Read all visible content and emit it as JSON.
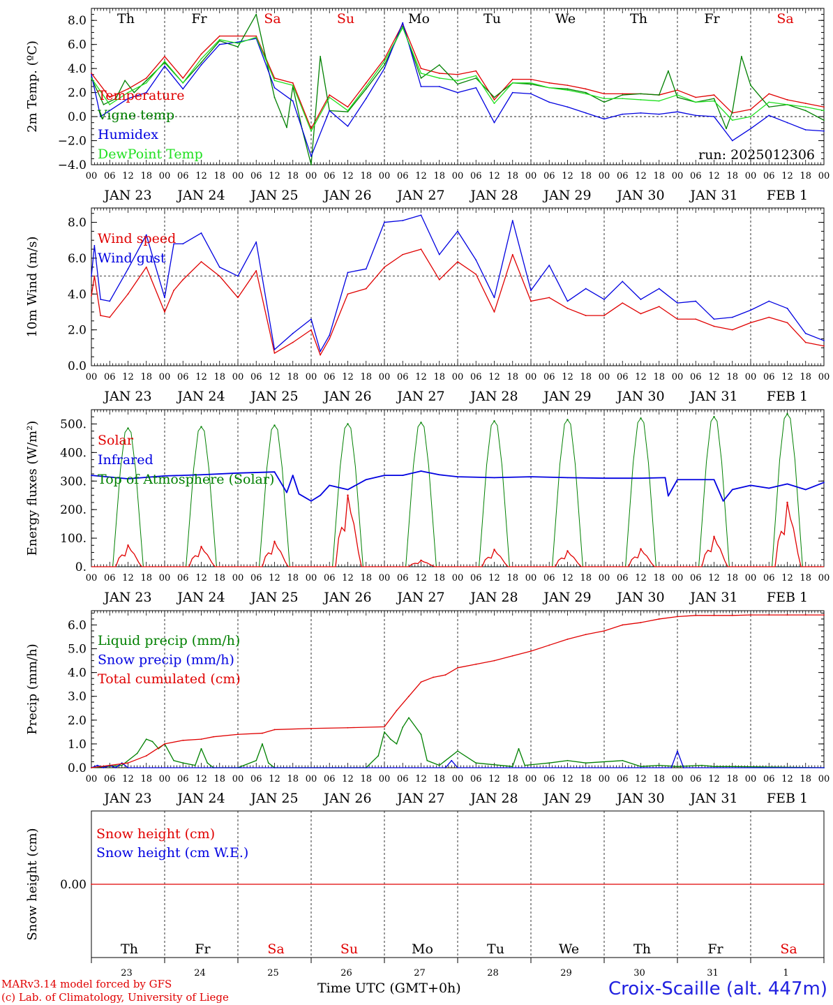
{
  "weekday_labels": [
    {
      "label": "Th",
      "color": "#000000"
    },
    {
      "label": "Fr",
      "color": "#000000"
    },
    {
      "label": "Sa",
      "color": "#e00000"
    },
    {
      "label": "Su",
      "color": "#e00000"
    },
    {
      "label": "Mo",
      "color": "#000000"
    },
    {
      "label": "Tu",
      "color": "#000000"
    },
    {
      "label": "We",
      "color": "#000000"
    },
    {
      "label": "Th",
      "color": "#000000"
    },
    {
      "label": "Fr",
      "color": "#000000"
    },
    {
      "label": "Sa",
      "color": "#e00000"
    }
  ],
  "date_labels": [
    "JAN 23",
    "JAN 24",
    "JAN 25",
    "JAN 26",
    "JAN 27",
    "JAN 28",
    "JAN 29",
    "JAN 30",
    "JAN 31",
    "FEB  1"
  ],
  "hour_labels": [
    "00",
    "06",
    "12",
    "18"
  ],
  "day_numbers": [
    "23",
    "24",
    "25",
    "26",
    "27",
    "28",
    "29",
    "30",
    "31",
    "1"
  ],
  "run_label": "run: 2025012306",
  "footer": {
    "credit_line1": "MARv3.14 model forced by GFS",
    "credit_line2": "(c) Lab. of Climatology, University of Liege",
    "x_title": "Time UTC (GMT+0h)",
    "station": "Croix-Scaille (alt. 447m)"
  },
  "colors": {
    "red": "#e00000",
    "green": "#008000",
    "blue": "#0000e0",
    "lightgreen": "#20e020",
    "axis": "#000000"
  },
  "chart_data": [
    {
      "type": "line",
      "ylabel": "2m Temp. (ºC)",
      "ylim": [
        -4,
        9
      ],
      "ytick_values": [
        -4,
        -2,
        0,
        2,
        4,
        6,
        8
      ],
      "ytick_labels": [
        "−4.0",
        "−2.0",
        "0.0",
        "2.0",
        "4.0",
        "6.0",
        "8.0"
      ],
      "reference_line": 0,
      "x_unit": "hours since JAN 23 00 UTC",
      "series": [
        {
          "name": "Temperature",
          "color": "#e00000",
          "x": [
            0,
            6,
            12,
            18,
            24,
            30,
            36,
            42,
            48,
            54,
            60,
            66,
            72,
            78,
            84,
            90,
            96,
            102,
            108,
            114,
            120,
            126,
            132,
            138,
            144,
            150,
            156,
            162,
            168,
            174,
            180,
            186,
            192,
            198,
            204,
            210,
            216,
            222,
            228,
            234,
            240
          ],
          "values": [
            3.6,
            1.6,
            2.3,
            3.2,
            5,
            3.2,
            5.2,
            6.7,
            6.7,
            6.7,
            3.2,
            2.8,
            -1,
            1.8,
            0.8,
            2.8,
            4.8,
            7.7,
            4,
            3.6,
            3.5,
            3.8,
            1.4,
            3.1,
            3.1,
            2.8,
            2.6,
            2.3,
            1.9,
            1.9,
            1.9,
            1.8,
            2.2,
            1.6,
            1.8,
            0.3,
            0.6,
            1.9,
            1.4,
            1.1,
            0.8
          ]
        },
        {
          "name": "Vigne temp",
          "color": "#008000",
          "x": [
            0,
            4,
            8,
            11,
            14,
            18,
            24,
            30,
            36,
            42,
            48,
            54,
            60,
            64,
            66,
            69,
            72,
            75,
            78,
            84,
            90,
            96,
            102,
            108,
            114,
            120,
            126,
            132,
            138,
            144,
            150,
            156,
            162,
            168,
            174,
            180,
            186,
            189,
            192,
            198,
            204,
            208,
            210,
            213,
            216,
            222,
            228,
            234,
            240
          ],
          "values": [
            3.2,
            1,
            1.5,
            3,
            2,
            3,
            4.5,
            2.8,
            4.5,
            6.3,
            5.8,
            8.5,
            1.6,
            -0.9,
            2.5,
            -1,
            -4,
            5,
            0.5,
            0.4,
            2.3,
            4.3,
            7.5,
            3.2,
            4.3,
            2.7,
            3.2,
            1.6,
            2.8,
            2.7,
            2.4,
            2.3,
            2,
            1.2,
            1.8,
            1.9,
            1.8,
            3.8,
            1.6,
            1.2,
            1.5,
            -1,
            0.4,
            5,
            2.6,
            0.8,
            1.0,
            0.5,
            -0.3
          ]
        },
        {
          "name": "Humidex",
          "color": "#0000e0",
          "x": [
            0,
            3,
            6,
            12,
            18,
            24,
            30,
            36,
            42,
            48,
            54,
            60,
            66,
            72,
            78,
            84,
            90,
            96,
            102,
            108,
            114,
            120,
            126,
            132,
            138,
            144,
            150,
            156,
            162,
            168,
            174,
            180,
            186,
            192,
            198,
            204,
            210,
            216,
            222,
            228,
            234,
            240
          ],
          "values": [
            3.5,
            0,
            0.5,
            1.5,
            2,
            4.2,
            2.3,
            4.3,
            6,
            6.2,
            6.5,
            2.4,
            1.3,
            -3.3,
            0.5,
            -0.8,
            1.5,
            4,
            7.8,
            2.5,
            2.5,
            2,
            2.4,
            -0.5,
            2,
            1.9,
            1.2,
            0.8,
            0.3,
            -0.2,
            0.2,
            0.3,
            0.2,
            0.4,
            0.1,
            0,
            -2,
            -1,
            0.1,
            -0.5,
            -1.1,
            -1.2
          ]
        },
        {
          "name": "DewPoint Temp",
          "color": "#20e020",
          "x": [
            0,
            6,
            12,
            18,
            24,
            30,
            36,
            42,
            48,
            54,
            60,
            66,
            72,
            78,
            84,
            90,
            96,
            102,
            108,
            114,
            120,
            126,
            132,
            138,
            144,
            150,
            156,
            162,
            168,
            174,
            180,
            186,
            192,
            198,
            204,
            210,
            216,
            222,
            228,
            234,
            240
          ],
          "values": [
            3.2,
            1,
            2,
            2.8,
            4.6,
            2.8,
            4.8,
            6.4,
            6.1,
            6.6,
            3,
            2.6,
            -1.2,
            1.6,
            0.5,
            2.5,
            4.6,
            7.4,
            3.6,
            3.2,
            3,
            3.4,
            1.1,
            2.8,
            2.8,
            2.4,
            2.2,
            1.9,
            1.5,
            1.5,
            1.4,
            1.3,
            1.8,
            1.2,
            1.3,
            -0.3,
            0,
            1.2,
            1,
            0.8,
            0.5
          ]
        }
      ],
      "legend": [
        "Temperature",
        "Vigne temp",
        "Humidex",
        "DewPoint Temp"
      ]
    },
    {
      "type": "line",
      "ylabel": "10m Wind (m/s)",
      "ylim": [
        0,
        8.8
      ],
      "ytick_values": [
        0,
        2,
        4,
        6,
        8
      ],
      "ytick_labels": [
        "0.0",
        "2.0",
        "4.0",
        "6.0",
        "8.0"
      ],
      "reference_line": 5,
      "x_unit": "hours since JAN 23 00 UTC",
      "series": [
        {
          "name": "Wind speed",
          "color": "#e00000",
          "x": [
            0,
            1,
            3,
            6,
            12,
            18,
            24,
            27,
            30,
            36,
            42,
            48,
            54,
            60,
            66,
            72,
            75,
            78,
            84,
            90,
            96,
            102,
            108,
            114,
            120,
            126,
            132,
            138,
            144,
            150,
            156,
            162,
            168,
            174,
            180,
            186,
            192,
            198,
            204,
            210,
            216,
            222,
            228,
            234,
            240
          ],
          "values": [
            3.9,
            5,
            2.8,
            2.7,
            4,
            5.5,
            3,
            4.2,
            4.8,
            5.8,
            5,
            3.8,
            5.3,
            0.7,
            1.3,
            2,
            0.6,
            1.5,
            4,
            4.3,
            5.5,
            6.2,
            6.5,
            4.8,
            5.8,
            5.1,
            3,
            6.2,
            3.6,
            3.8,
            3.2,
            2.8,
            2.8,
            3.5,
            2.9,
            3.3,
            2.6,
            2.6,
            2.2,
            2,
            2.4,
            2.7,
            2.4,
            1.3,
            1.1
          ]
        },
        {
          "name": "Wind gust",
          "color": "#0000e0",
          "x": [
            0,
            1,
            3,
            6,
            12,
            18,
            24,
            27,
            30,
            36,
            42,
            48,
            54,
            60,
            66,
            72,
            75,
            78,
            84,
            90,
            96,
            102,
            108,
            114,
            120,
            126,
            132,
            138,
            144,
            150,
            156,
            162,
            168,
            174,
            180,
            186,
            192,
            198,
            204,
            210,
            216,
            222,
            228,
            234,
            240
          ],
          "values": [
            5,
            6.7,
            3.7,
            3.6,
            5.4,
            7.3,
            3.8,
            6.8,
            6.8,
            7.4,
            5.5,
            5,
            6.9,
            0.9,
            1.8,
            2.6,
            0.8,
            1.7,
            5.2,
            5.4,
            8,
            8.1,
            8.4,
            6.2,
            7.5,
            5.9,
            3.8,
            8.1,
            4.2,
            5.6,
            3.6,
            4.3,
            3.7,
            4.7,
            3.7,
            4.3,
            3.5,
            3.6,
            2.6,
            2.7,
            3.1,
            3.6,
            3.2,
            1.8,
            1.4
          ]
        }
      ],
      "legend": [
        "Wind speed",
        "Wind gust"
      ]
    },
    {
      "type": "line",
      "ylabel": "Energy fluxes (W/m²)",
      "ylim": [
        0,
        550
      ],
      "ytick_values": [
        0,
        100,
        200,
        300,
        400,
        500
      ],
      "ytick_labels": [
        "0.",
        "100.",
        "200.",
        "300.",
        "400.",
        "500."
      ],
      "x_unit": "hours since JAN 23 00 UTC",
      "toa_peaks": [
        485,
        490,
        495,
        500,
        505,
        510,
        515,
        520,
        525,
        535
      ],
      "solar_peaks": [
        75,
        70,
        88,
        250,
        22,
        60,
        55,
        62,
        105,
        225
      ],
      "series": [
        {
          "name": "Infrared",
          "color": "#0000e0",
          "x": [
            0,
            12,
            24,
            36,
            48,
            60,
            64,
            66,
            68,
            72,
            75,
            78,
            84,
            90,
            96,
            102,
            108,
            114,
            120,
            132,
            144,
            156,
            168,
            180,
            188,
            189,
            192,
            204,
            207,
            210,
            216,
            222,
            228,
            234,
            240
          ],
          "values": [
            320,
            308,
            318,
            322,
            328,
            332,
            260,
            320,
            255,
            230,
            250,
            285,
            270,
            305,
            320,
            320,
            335,
            322,
            315,
            312,
            315,
            312,
            310,
            310,
            312,
            248,
            305,
            305,
            230,
            270,
            285,
            275,
            290,
            270,
            295
          ]
        }
      ],
      "legend": [
        "Solar",
        "Infrared",
        "Top of Atmosphere (Solar)"
      ]
    },
    {
      "type": "line",
      "ylabel": "Precip (mm/h)",
      "ylim": [
        0,
        6.6
      ],
      "ytick_values": [
        0,
        1,
        2,
        3,
        4,
        5,
        6
      ],
      "ytick_labels": [
        "0.0",
        "1.0",
        "2.0",
        "3.0",
        "4.0",
        "5.0",
        "6.0"
      ],
      "x_unit": "hours since JAN 23 00 UTC",
      "series": [
        {
          "name": "Liquid precip (mm/h)",
          "color": "#008000",
          "x": [
            0,
            10,
            15,
            18,
            20,
            22,
            24,
            27,
            30,
            34,
            36,
            38,
            40,
            48,
            54,
            56,
            58,
            60,
            90,
            94,
            96,
            98,
            100,
            102,
            104,
            108,
            110,
            114,
            120,
            126,
            138,
            140,
            142,
            150,
            156,
            162,
            174,
            180,
            186,
            192,
            200,
            204,
            210,
            240
          ],
          "values": [
            0,
            0.1,
            0.6,
            1.2,
            1.1,
            0.8,
            1.0,
            0.3,
            0.2,
            0.1,
            0.8,
            0.2,
            0,
            0,
            0.3,
            1.0,
            0.2,
            0,
            0,
            0.5,
            1.5,
            1.2,
            1.0,
            1.7,
            2.1,
            1.4,
            0.3,
            0.1,
            0.7,
            0.2,
            0.05,
            0.8,
            0.1,
            0.2,
            0.3,
            0.2,
            0.3,
            0.05,
            0.1,
            0.05,
            0.1,
            0.05,
            0.05,
            0
          ]
        },
        {
          "name": "Snow precip (mm/h)",
          "color": "#0000e0",
          "x": [
            0,
            2,
            4,
            6,
            8,
            10,
            12,
            116,
            118,
            120,
            160,
            176,
            180,
            190,
            192,
            194,
            240
          ],
          "values": [
            0,
            0.1,
            0,
            0.1,
            0,
            0.2,
            0,
            0,
            0.3,
            0,
            0,
            0,
            0,
            0,
            0.7,
            0,
            0
          ]
        },
        {
          "name": "Total cumulated (cm)",
          "color": "#e00000",
          "x": [
            0,
            6,
            12,
            18,
            24,
            30,
            36,
            40,
            48,
            56,
            60,
            72,
            84,
            96,
            100,
            104,
            108,
            112,
            116,
            120,
            126,
            132,
            138,
            144,
            150,
            156,
            162,
            168,
            174,
            180,
            186,
            192,
            198,
            204,
            210,
            216,
            222,
            228,
            234,
            240
          ],
          "values": [
            0,
            0.1,
            0.2,
            0.5,
            1.0,
            1.15,
            1.2,
            1.3,
            1.4,
            1.45,
            1.6,
            1.65,
            1.68,
            1.72,
            2.4,
            3.0,
            3.6,
            3.8,
            3.9,
            4.2,
            4.35,
            4.5,
            4.7,
            4.9,
            5.15,
            5.4,
            5.6,
            5.75,
            6.0,
            6.1,
            6.25,
            6.35,
            6.4,
            6.4,
            6.4,
            6.42,
            6.42,
            6.42,
            6.42,
            6.42
          ]
        }
      ],
      "legend": [
        "Liquid precip (mm/h)",
        "Snow precip (mm/h)",
        "Total cumulated (cm)"
      ]
    },
    {
      "type": "line",
      "ylabel": "Snow height (cm)",
      "ylim": [
        -1,
        1
      ],
      "ytick_values": [
        0
      ],
      "ytick_labels": [
        "0.00"
      ],
      "x_unit": "hours since JAN 23 00 UTC",
      "series": [
        {
          "name": "Snow height (cm)",
          "color": "#e00000",
          "x": [
            0,
            240
          ],
          "values": [
            0,
            0
          ]
        }
      ],
      "legend": [
        "Snow height (cm)",
        "Snow height (cm W.E.)"
      ],
      "legend_colors": [
        "#e00000",
        "#0000e0"
      ]
    }
  ]
}
